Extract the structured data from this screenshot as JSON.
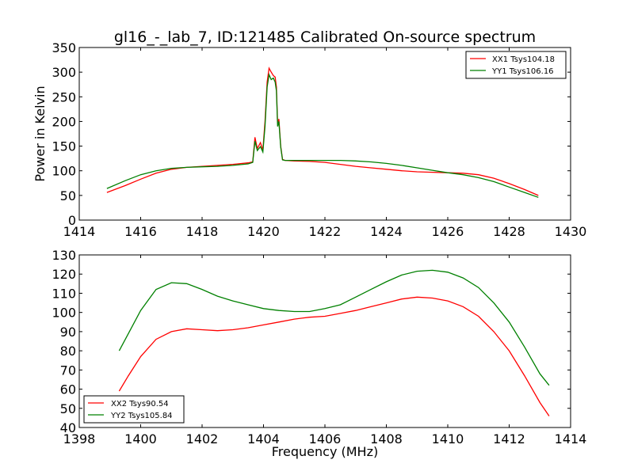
{
  "chart_data": [
    {
      "type": "line",
      "title": "gl16_-_lab_7, ID:121485 Calibrated On-source spectrum",
      "xlabel": "",
      "ylabel": "Power in Kelvin",
      "xlim": [
        1414,
        1430
      ],
      "ylim": [
        0,
        350
      ],
      "xticks": [
        1414,
        1416,
        1418,
        1420,
        1422,
        1424,
        1426,
        1428,
        1430
      ],
      "yticks": [
        0,
        50,
        100,
        150,
        200,
        250,
        300,
        350
      ],
      "legend_position": "top-right",
      "grid": false,
      "series": [
        {
          "name": "XX1 Tsys104.18",
          "color": "#ff0000",
          "points": [
            [
              1414.9,
              56
            ],
            [
              1415.5,
              70
            ],
            [
              1416.0,
              83
            ],
            [
              1416.5,
              95
            ],
            [
              1417.0,
              103
            ],
            [
              1417.5,
              107
            ],
            [
              1418.0,
              109
            ],
            [
              1418.5,
              111
            ],
            [
              1419.0,
              113
            ],
            [
              1419.5,
              116
            ],
            [
              1419.65,
              118
            ],
            [
              1419.72,
              168
            ],
            [
              1419.8,
              145
            ],
            [
              1419.9,
              157
            ],
            [
              1419.98,
              142
            ],
            [
              1420.05,
              200
            ],
            [
              1420.12,
              280
            ],
            [
              1420.18,
              308
            ],
            [
              1420.25,
              300
            ],
            [
              1420.32,
              293
            ],
            [
              1420.38,
              290
            ],
            [
              1420.42,
              270
            ],
            [
              1420.46,
              195
            ],
            [
              1420.5,
              205
            ],
            [
              1420.56,
              150
            ],
            [
              1420.62,
              123
            ],
            [
              1420.7,
              121
            ],
            [
              1421.0,
              120
            ],
            [
              1421.5,
              119
            ],
            [
              1422.0,
              117
            ],
            [
              1422.5,
              113
            ],
            [
              1423.0,
              109
            ],
            [
              1423.5,
              106
            ],
            [
              1424.0,
              103
            ],
            [
              1424.5,
              100
            ],
            [
              1425.0,
              98
            ],
            [
              1425.5,
              97
            ],
            [
              1426.0,
              96
            ],
            [
              1426.5,
              95
            ],
            [
              1427.0,
              92
            ],
            [
              1427.5,
              85
            ],
            [
              1428.0,
              74
            ],
            [
              1428.5,
              62
            ],
            [
              1428.95,
              50
            ]
          ]
        },
        {
          "name": "YY1 Tsys106.16",
          "color": "#008000",
          "points": [
            [
              1414.9,
              64
            ],
            [
              1415.5,
              80
            ],
            [
              1416.0,
              92
            ],
            [
              1416.5,
              100
            ],
            [
              1417.0,
              105
            ],
            [
              1417.5,
              107
            ],
            [
              1418.0,
              108
            ],
            [
              1418.5,
              109
            ],
            [
              1419.0,
              111
            ],
            [
              1419.5,
              114
            ],
            [
              1419.65,
              117
            ],
            [
              1419.72,
              160
            ],
            [
              1419.8,
              141
            ],
            [
              1419.9,
              149
            ],
            [
              1419.98,
              138
            ],
            [
              1420.05,
              190
            ],
            [
              1420.12,
              270
            ],
            [
              1420.18,
              295
            ],
            [
              1420.25,
              285
            ],
            [
              1420.32,
              288
            ],
            [
              1420.38,
              280
            ],
            [
              1420.42,
              262
            ],
            [
              1420.46,
              190
            ],
            [
              1420.5,
              200
            ],
            [
              1420.56,
              148
            ],
            [
              1420.62,
              122
            ],
            [
              1420.7,
              121
            ],
            [
              1421.0,
              121
            ],
            [
              1421.5,
              121
            ],
            [
              1422.0,
              121
            ],
            [
              1422.5,
              121
            ],
            [
              1423.0,
              120
            ],
            [
              1423.5,
              118
            ],
            [
              1424.0,
              115
            ],
            [
              1424.5,
              111
            ],
            [
              1425.0,
              106
            ],
            [
              1425.5,
              101
            ],
            [
              1426.0,
              96
            ],
            [
              1426.5,
              92
            ],
            [
              1427.0,
              86
            ],
            [
              1427.5,
              78
            ],
            [
              1428.0,
              67
            ],
            [
              1428.5,
              56
            ],
            [
              1428.95,
              46
            ]
          ]
        }
      ]
    },
    {
      "type": "line",
      "title": "",
      "xlabel": "Frequency (MHz)",
      "ylabel": "",
      "xlim": [
        1398,
        1414
      ],
      "ylim": [
        40,
        130
      ],
      "xticks": [
        1398,
        1400,
        1402,
        1404,
        1406,
        1408,
        1410,
        1412,
        1414
      ],
      "yticks": [
        40,
        50,
        60,
        70,
        80,
        90,
        100,
        110,
        120,
        130
      ],
      "legend_position": "bottom-left",
      "grid": false,
      "series": [
        {
          "name": "XX2 Tsys90.54",
          "color": "#ff0000",
          "points": [
            [
              1399.3,
              59
            ],
            [
              1399.6,
              67
            ],
            [
              1400.0,
              77
            ],
            [
              1400.5,
              86
            ],
            [
              1401.0,
              90
            ],
            [
              1401.5,
              91.5
            ],
            [
              1402.0,
              91
            ],
            [
              1402.5,
              90.5
            ],
            [
              1403.0,
              91
            ],
            [
              1403.5,
              92
            ],
            [
              1404.0,
              93.5
            ],
            [
              1404.5,
              95
            ],
            [
              1405.0,
              96.5
            ],
            [
              1405.5,
              97.5
            ],
            [
              1406.0,
              98
            ],
            [
              1406.5,
              99.5
            ],
            [
              1407.0,
              101
            ],
            [
              1407.5,
              103
            ],
            [
              1408.0,
              105
            ],
            [
              1408.5,
              107
            ],
            [
              1409.0,
              108
            ],
            [
              1409.5,
              107.5
            ],
            [
              1410.0,
              106
            ],
            [
              1410.5,
              103
            ],
            [
              1411.0,
              98
            ],
            [
              1411.5,
              90
            ],
            [
              1412.0,
              80
            ],
            [
              1412.5,
              67
            ],
            [
              1413.0,
              53
            ],
            [
              1413.3,
              46
            ]
          ]
        },
        {
          "name": "YY2 Tsys105.84",
          "color": "#008000",
          "points": [
            [
              1399.3,
              80
            ],
            [
              1399.6,
              89
            ],
            [
              1400.0,
              101
            ],
            [
              1400.5,
              112
            ],
            [
              1401.0,
              115.5
            ],
            [
              1401.5,
              115
            ],
            [
              1402.0,
              112
            ],
            [
              1402.5,
              108.5
            ],
            [
              1403.0,
              106
            ],
            [
              1403.5,
              104
            ],
            [
              1404.0,
              102
            ],
            [
              1404.5,
              101
            ],
            [
              1405.0,
              100.5
            ],
            [
              1405.5,
              100.5
            ],
            [
              1406.0,
              102
            ],
            [
              1406.5,
              104
            ],
            [
              1407.0,
              108
            ],
            [
              1407.5,
              112
            ],
            [
              1408.0,
              116
            ],
            [
              1408.5,
              119.5
            ],
            [
              1409.0,
              121.5
            ],
            [
              1409.5,
              122
            ],
            [
              1410.0,
              121
            ],
            [
              1410.5,
              118
            ],
            [
              1411.0,
              113
            ],
            [
              1411.5,
              105
            ],
            [
              1412.0,
              95
            ],
            [
              1412.5,
              82
            ],
            [
              1413.0,
              68
            ],
            [
              1413.3,
              62
            ]
          ]
        }
      ]
    }
  ]
}
